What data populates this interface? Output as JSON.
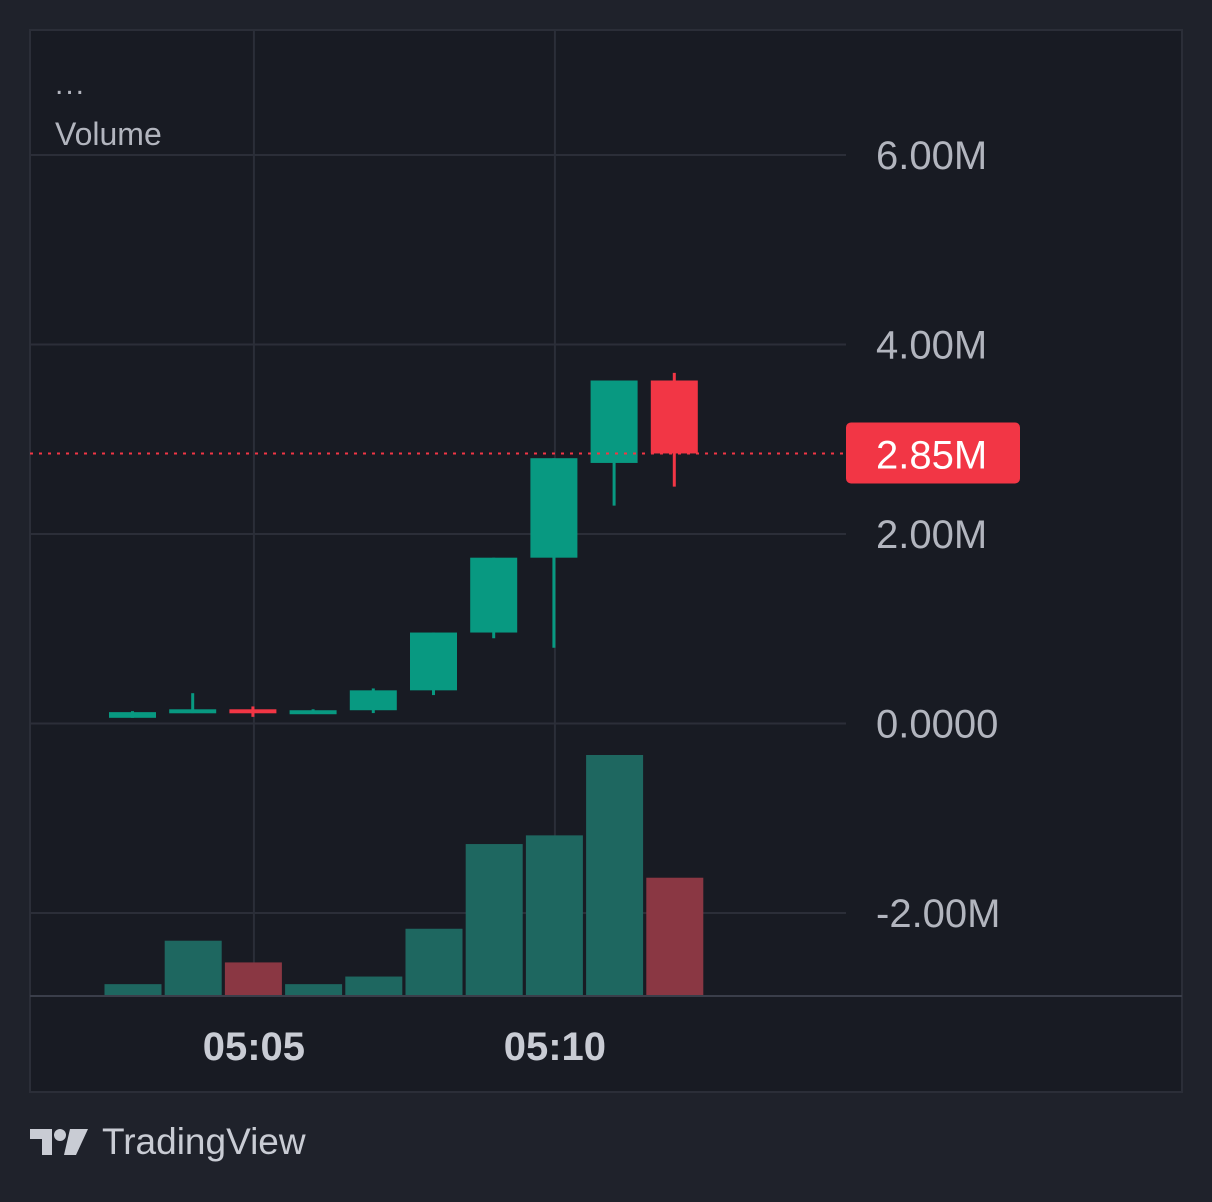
{
  "legend": {
    "menu_dots": "...",
    "indicator": "Volume"
  },
  "brand": {
    "name": "TradingView",
    "icon": "tradingview-logo-icon"
  },
  "price_axis": {
    "labels": [
      "6.00M",
      "4.00M",
      "2.00M",
      "0.0000",
      "-2.00M"
    ]
  },
  "time_axis": {
    "labels": [
      "05:05",
      "05:10"
    ]
  },
  "last_price": {
    "label": "2.85M",
    "value": 2850000
  },
  "colors": {
    "up": "#089981",
    "down": "#f23645",
    "volume_up": "#1e6760",
    "volume_down": "#8a3743",
    "background": "#1f222b",
    "pane": "#181b23",
    "grid": "#2b2e38",
    "text": "#b2b5be"
  },
  "chart_data": {
    "type": "candlestick",
    "price_ylim": [
      -2880000,
      7300000
    ],
    "price_ticks": [
      6000000,
      4000000,
      2000000,
      0,
      -2000000
    ],
    "times": [
      "05:03",
      "05:04",
      "05:05",
      "05:06",
      "05:07",
      "05:08",
      "05:09",
      "05:10",
      "05:11",
      "05:12"
    ],
    "candles": [
      {
        "time": "05:03",
        "open": 60000,
        "high": 130000,
        "low": 60000,
        "close": 120000,
        "volume": 1
      },
      {
        "time": "05:04",
        "open": 120000,
        "high": 320000,
        "low": 110000,
        "close": 150000,
        "volume": 5
      },
      {
        "time": "05:05",
        "open": 150000,
        "high": 180000,
        "low": 70000,
        "close": 110000,
        "volume": 3
      },
      {
        "time": "05:06",
        "open": 110000,
        "high": 150000,
        "low": 110000,
        "close": 140000,
        "volume": 1
      },
      {
        "time": "05:07",
        "open": 140000,
        "high": 370000,
        "low": 110000,
        "close": 350000,
        "volume": 1.7
      },
      {
        "time": "05:08",
        "open": 350000,
        "high": 960000,
        "low": 300000,
        "close": 960000,
        "volume": 6.1
      },
      {
        "time": "05:09",
        "open": 960000,
        "high": 1750000,
        "low": 900000,
        "close": 1750000,
        "volume": 13.9
      },
      {
        "time": "05:10",
        "open": 1750000,
        "high": 2800000,
        "low": 800000,
        "close": 2800000,
        "volume": 14.7
      },
      {
        "time": "05:11",
        "open": 2750000,
        "high": 3620000,
        "low": 2300000,
        "close": 3620000,
        "volume": 22.1
      },
      {
        "time": "05:12",
        "open": 3620000,
        "high": 3700000,
        "low": 2500000,
        "close": 2850000,
        "volume": 10.8
      }
    ]
  }
}
